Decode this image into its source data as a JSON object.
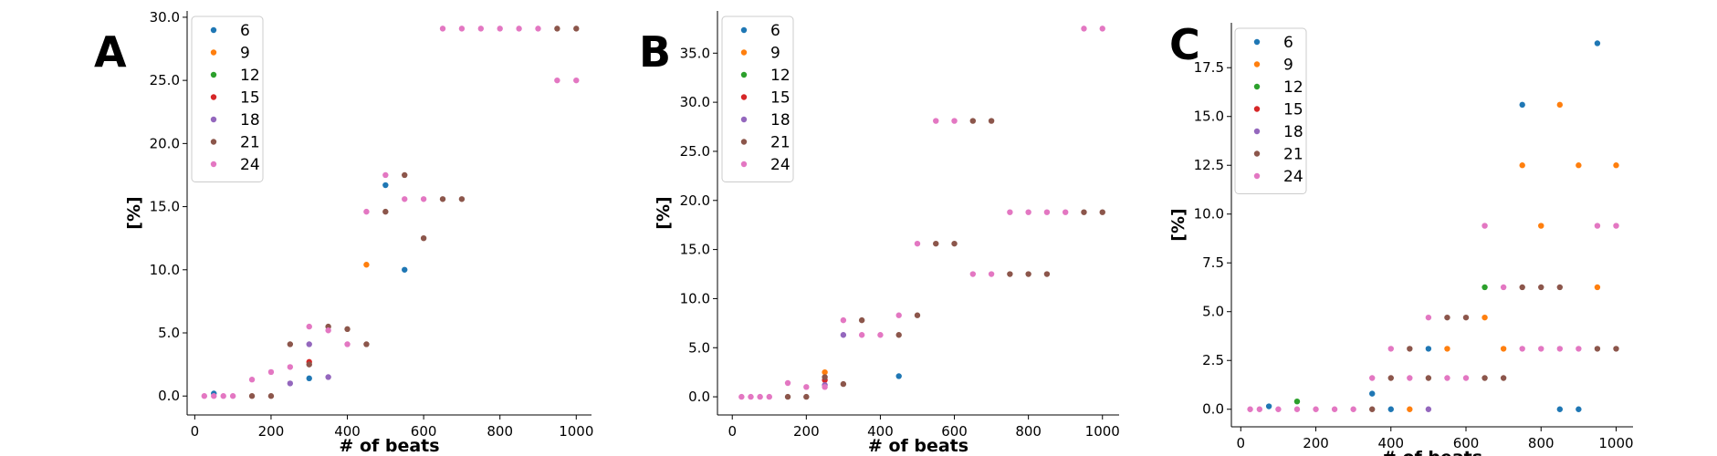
{
  "chart_data": [
    {
      "type": "scatter",
      "panel_label": "A",
      "xlabel": "# of beats",
      "ylabel": "[%]",
      "xlim": [
        -20,
        1040
      ],
      "ylim": [
        -1.5,
        30.5
      ],
      "xticks": [
        0,
        200,
        400,
        600,
        800,
        1000
      ],
      "xtick_labels": [
        "0",
        "200",
        "400",
        "600",
        "800",
        "1000"
      ],
      "yticks": [
        0,
        5,
        10,
        15,
        20,
        25,
        30
      ],
      "ytick_labels": [
        "0.0",
        "5.0",
        "10.0",
        "15.0",
        "20.0",
        "25.0",
        "30.0"
      ],
      "grid": false,
      "legend_position": "top-left",
      "series": [
        {
          "name": "6",
          "color": "#1f77b4",
          "points": [
            [
              50,
              0.2
            ],
            [
              300,
              1.4
            ],
            [
              500,
              16.7
            ],
            [
              550,
              10.0
            ]
          ]
        },
        {
          "name": "9",
          "color": "#ff7f0e",
          "points": [
            [
              450,
              10.4
            ]
          ]
        },
        {
          "name": "12",
          "color": "#2ca02c",
          "points": []
        },
        {
          "name": "15",
          "color": "#d62728",
          "points": [
            [
              300,
              2.7
            ]
          ]
        },
        {
          "name": "18",
          "color": "#9467bd",
          "points": [
            [
              250,
              1.0
            ],
            [
              300,
              4.1
            ],
            [
              350,
              1.5
            ]
          ]
        },
        {
          "name": "21",
          "color": "#8c564b",
          "points": [
            [
              150,
              0.0
            ],
            [
              200,
              0.0
            ],
            [
              250,
              4.1
            ],
            [
              300,
              2.5
            ],
            [
              350,
              5.5
            ],
            [
              400,
              5.3
            ],
            [
              450,
              4.1
            ],
            [
              500,
              14.6
            ],
            [
              550,
              17.5
            ],
            [
              600,
              12.5
            ],
            [
              650,
              15.6
            ],
            [
              700,
              15.6
            ],
            [
              950,
              29.1
            ],
            [
              1000,
              29.1
            ]
          ]
        },
        {
          "name": "24",
          "color": "#e377c2",
          "points": [
            [
              25,
              0.0
            ],
            [
              50,
              0.0
            ],
            [
              75,
              0.0
            ],
            [
              100,
              0.0
            ],
            [
              150,
              1.3
            ],
            [
              200,
              1.9
            ],
            [
              250,
              2.3
            ],
            [
              300,
              5.5
            ],
            [
              350,
              5.2
            ],
            [
              400,
              4.1
            ],
            [
              450,
              14.6
            ],
            [
              500,
              17.5
            ],
            [
              550,
              15.6
            ],
            [
              600,
              15.6
            ],
            [
              650,
              29.1
            ],
            [
              700,
              29.1
            ],
            [
              750,
              29.1
            ],
            [
              800,
              29.1
            ],
            [
              850,
              29.1
            ],
            [
              900,
              29.1
            ],
            [
              950,
              25.0
            ],
            [
              1000,
              25.0
            ]
          ]
        }
      ]
    },
    {
      "type": "scatter",
      "panel_label": "B",
      "xlabel": "# of beats",
      "ylabel": "[%]",
      "xlim": [
        -40,
        1045
      ],
      "ylim": [
        -1.85,
        39.3
      ],
      "xticks": [
        0,
        200,
        400,
        600,
        800,
        1000
      ],
      "xtick_labels": [
        "0",
        "200",
        "400",
        "600",
        "800",
        "1000"
      ],
      "yticks": [
        0,
        5,
        10,
        15,
        20,
        25,
        30,
        35
      ],
      "ytick_labels": [
        "0.0",
        "5.0",
        "10.0",
        "15.0",
        "20.0",
        "25.0",
        "30.0",
        "35.0"
      ],
      "grid": false,
      "legend_position": "top-left",
      "series": [
        {
          "name": "6",
          "color": "#1f77b4",
          "points": [
            [
              450,
              2.1
            ]
          ]
        },
        {
          "name": "9",
          "color": "#ff7f0e",
          "points": [
            [
              250,
              2.5
            ]
          ]
        },
        {
          "name": "12",
          "color": "#2ca02c",
          "points": []
        },
        {
          "name": "15",
          "color": "#d62728",
          "points": [
            [
              250,
              1.7
            ]
          ]
        },
        {
          "name": "18",
          "color": "#9467bd",
          "points": [
            [
              250,
              1.2
            ],
            [
              300,
              6.3
            ]
          ]
        },
        {
          "name": "21",
          "color": "#8c564b",
          "points": [
            [
              150,
              0.0
            ],
            [
              200,
              0.0
            ],
            [
              250,
              2.0
            ],
            [
              300,
              1.3
            ],
            [
              350,
              7.8
            ],
            [
              450,
              6.3
            ],
            [
              500,
              8.3
            ],
            [
              550,
              15.6
            ],
            [
              600,
              15.6
            ],
            [
              650,
              28.1
            ],
            [
              700,
              28.1
            ],
            [
              750,
              12.5
            ],
            [
              800,
              12.5
            ],
            [
              850,
              12.5
            ],
            [
              950,
              18.8
            ],
            [
              1000,
              18.8
            ]
          ]
        },
        {
          "name": "24",
          "color": "#e377c2",
          "points": [
            [
              25,
              0.0
            ],
            [
              50,
              0.0
            ],
            [
              75,
              0.0
            ],
            [
              100,
              0.0
            ],
            [
              150,
              1.4
            ],
            [
              200,
              1.0
            ],
            [
              250,
              1.0
            ],
            [
              300,
              7.8
            ],
            [
              350,
              6.3
            ],
            [
              400,
              6.3
            ],
            [
              450,
              8.3
            ],
            [
              500,
              15.6
            ],
            [
              550,
              28.1
            ],
            [
              600,
              28.1
            ],
            [
              650,
              12.5
            ],
            [
              700,
              12.5
            ],
            [
              750,
              18.8
            ],
            [
              800,
              18.8
            ],
            [
              850,
              18.8
            ],
            [
              900,
              18.8
            ],
            [
              950,
              37.5
            ],
            [
              1000,
              37.5
            ]
          ]
        }
      ]
    },
    {
      "type": "scatter",
      "panel_label": "C",
      "xlabel": "# of beats",
      "ylabel": "[%]",
      "xlim": [
        -25,
        1045
      ],
      "ylim": [
        -0.9,
        19.8
      ],
      "xticks": [
        0,
        200,
        400,
        600,
        800,
        1000
      ],
      "xtick_labels": [
        "0",
        "200",
        "400",
        "600",
        "800",
        "1000"
      ],
      "yticks": [
        0,
        2.5,
        5,
        7.5,
        10,
        12.5,
        15,
        17.5
      ],
      "ytick_labels": [
        "0.0",
        "2.5",
        "5.0",
        "7.5",
        "10.0",
        "12.5",
        "15.0",
        "17.5"
      ],
      "grid": false,
      "legend_position": "top-left",
      "series": [
        {
          "name": "6",
          "color": "#1f77b4",
          "points": [
            [
              75,
              0.15
            ],
            [
              350,
              0.8
            ],
            [
              400,
              0.0
            ],
            [
              500,
              3.1
            ],
            [
              750,
              15.6
            ],
            [
              850,
              0.0
            ],
            [
              900,
              0.0
            ],
            [
              950,
              18.75
            ]
          ]
        },
        {
          "name": "9",
          "color": "#ff7f0e",
          "points": [
            [
              450,
              0.0
            ],
            [
              550,
              3.1
            ],
            [
              650,
              4.7
            ],
            [
              700,
              3.1
            ],
            [
              750,
              12.5
            ],
            [
              800,
              9.4
            ],
            [
              850,
              15.6
            ],
            [
              900,
              12.5
            ],
            [
              950,
              6.25
            ],
            [
              1000,
              12.5
            ]
          ]
        },
        {
          "name": "12",
          "color": "#2ca02c",
          "points": [
            [
              150,
              0.4
            ],
            [
              650,
              6.25
            ]
          ]
        },
        {
          "name": "15",
          "color": "#d62728",
          "points": []
        },
        {
          "name": "18",
          "color": "#9467bd",
          "points": [
            [
              500,
              0.0
            ]
          ]
        },
        {
          "name": "21",
          "color": "#8c564b",
          "points": [
            [
              350,
              0.0
            ],
            [
              400,
              1.6
            ],
            [
              450,
              3.1
            ],
            [
              500,
              1.6
            ],
            [
              550,
              4.7
            ],
            [
              600,
              4.7
            ],
            [
              650,
              1.6
            ],
            [
              700,
              1.6
            ],
            [
              750,
              6.25
            ],
            [
              800,
              6.25
            ],
            [
              850,
              6.25
            ],
            [
              950,
              3.1
            ],
            [
              1000,
              3.1
            ]
          ]
        },
        {
          "name": "24",
          "color": "#e377c2",
          "points": [
            [
              25,
              0.0
            ],
            [
              50,
              0.0
            ],
            [
              100,
              0.0
            ],
            [
              150,
              0.0
            ],
            [
              200,
              0.0
            ],
            [
              250,
              0.0
            ],
            [
              300,
              0.0
            ],
            [
              350,
              1.6
            ],
            [
              400,
              3.1
            ],
            [
              450,
              1.6
            ],
            [
              500,
              4.7
            ],
            [
              550,
              1.6
            ],
            [
              600,
              1.6
            ],
            [
              650,
              9.4
            ],
            [
              700,
              6.25
            ],
            [
              750,
              3.1
            ],
            [
              800,
              3.1
            ],
            [
              850,
              3.1
            ],
            [
              900,
              3.1
            ],
            [
              950,
              9.4
            ],
            [
              1000,
              9.4
            ]
          ]
        }
      ]
    }
  ]
}
